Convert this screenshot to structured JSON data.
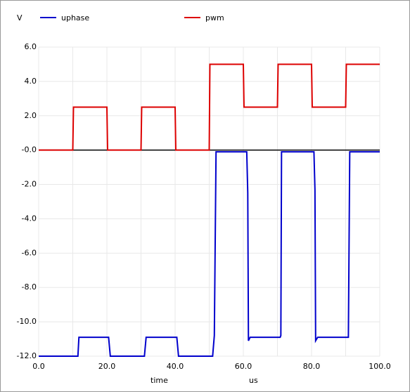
{
  "chart_data": {
    "type": "line",
    "y_label": "V",
    "x_label": "time",
    "x_unit": "us",
    "xlim": [
      0,
      100
    ],
    "ylim": [
      -12,
      6
    ],
    "xticks": [
      {
        "value": 0,
        "label": "0.0"
      },
      {
        "value": 20,
        "label": "20.0"
      },
      {
        "value": 40,
        "label": "40.0"
      },
      {
        "value": 60,
        "label": "60.0"
      },
      {
        "value": 80,
        "label": "80.0"
      },
      {
        "value": 100,
        "label": "100.0"
      }
    ],
    "xminor_ticks": [
      10,
      30,
      50,
      70,
      90
    ],
    "yticks": [
      {
        "value": 6,
        "label": "6.0"
      },
      {
        "value": 4,
        "label": "4.0"
      },
      {
        "value": 2,
        "label": "2.0"
      },
      {
        "value": 0,
        "label": "-0.0"
      },
      {
        "value": -2,
        "label": "-2.0"
      },
      {
        "value": -4,
        "label": "-4.0"
      },
      {
        "value": -6,
        "label": "-6.0"
      },
      {
        "value": -8,
        "label": "-8.0"
      },
      {
        "value": -10,
        "label": "-10.0"
      },
      {
        "value": -12,
        "label": "-12.0"
      }
    ],
    "grid": true,
    "series": [
      {
        "name": "uphase",
        "color": "#0000cc",
        "x": [
          0,
          11.5,
          11.8,
          20.5,
          21,
          31,
          31.5,
          40.5,
          41,
          51,
          51.5,
          52,
          61,
          61.3,
          61.5,
          62,
          70.8,
          71,
          71.2,
          80.7,
          81,
          81.2,
          81.8,
          90.8,
          91.2,
          100
        ],
        "values": [
          -12,
          -12,
          -10.9,
          -10.9,
          -12,
          -12,
          -10.9,
          -10.9,
          -12,
          -12,
          -10.8,
          -0.1,
          -0.1,
          -2.5,
          -11.1,
          -10.9,
          -10.9,
          -10.8,
          -0.1,
          -0.1,
          -2.3,
          -11.1,
          -10.9,
          -10.9,
          -0.1,
          -0.1
        ]
      },
      {
        "name": "pwm",
        "color": "#dd0000",
        "x": [
          0,
          10,
          10.2,
          20,
          20.2,
          30,
          30.2,
          40,
          40.2,
          50,
          50.2,
          60,
          60.2,
          70,
          70.2,
          80,
          80.2,
          90,
          90.2,
          100
        ],
        "values": [
          0,
          0,
          2.5,
          2.5,
          0,
          0,
          2.5,
          2.5,
          0,
          0,
          5,
          5,
          2.5,
          2.5,
          5,
          5,
          2.5,
          2.5,
          5,
          5
        ]
      }
    ]
  }
}
